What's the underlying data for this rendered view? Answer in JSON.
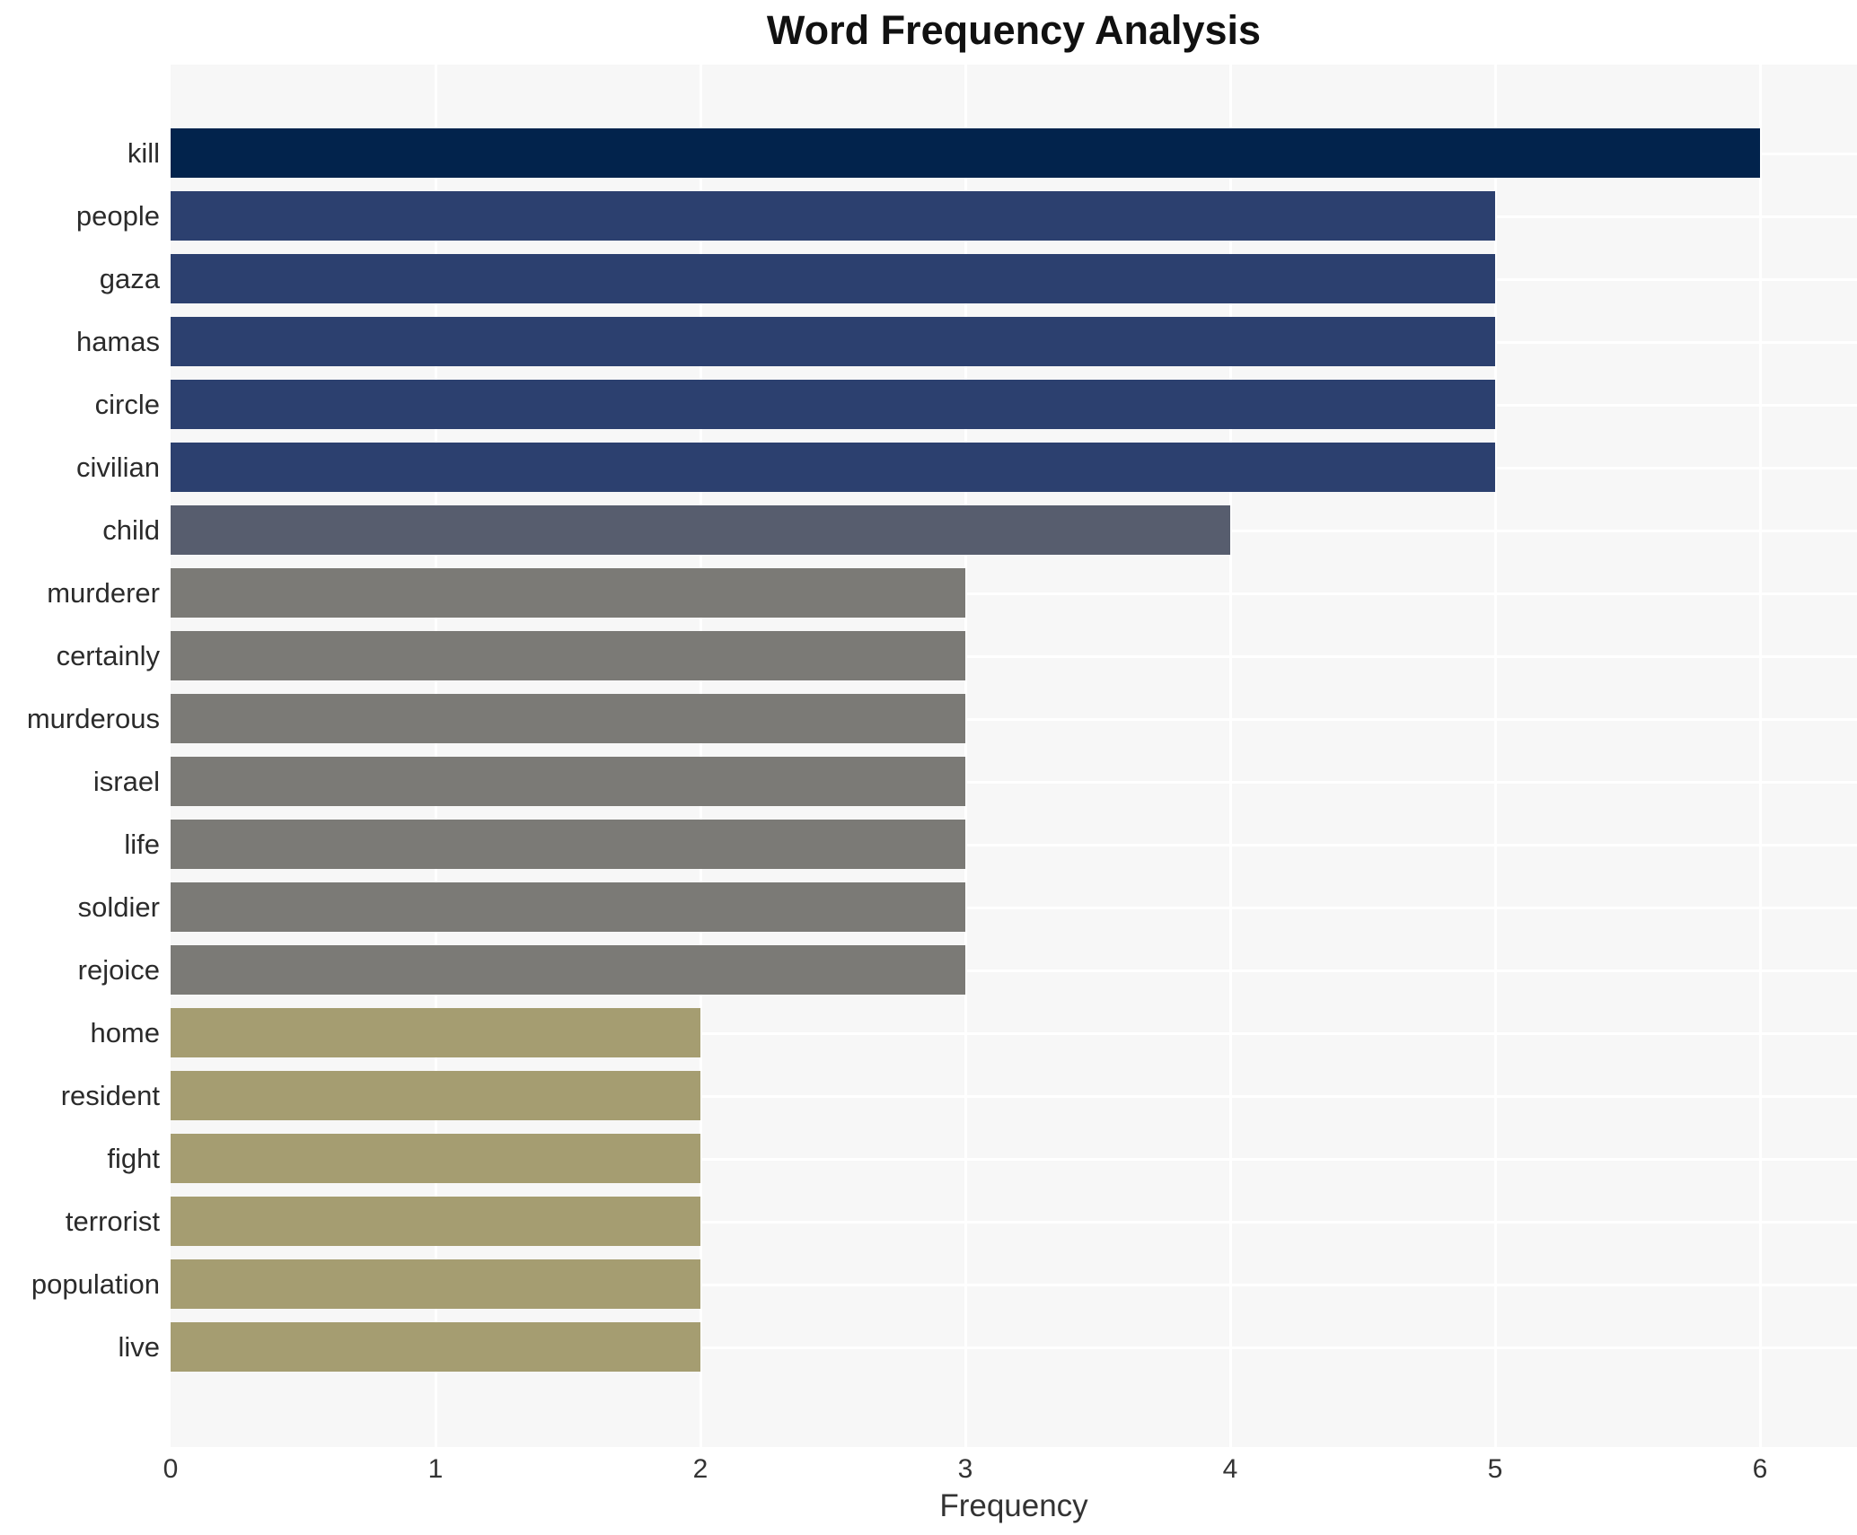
{
  "chart": {
    "title": "Word Frequency Analysis",
    "xlabel": "Frequency"
  },
  "chart_data": {
    "type": "bar",
    "orientation": "horizontal",
    "title": "Word Frequency Analysis",
    "xlabel": "Frequency",
    "ylabel": "",
    "categories": [
      "kill",
      "people",
      "gaza",
      "hamas",
      "circle",
      "civilian",
      "child",
      "murderer",
      "certainly",
      "murderous",
      "israel",
      "life",
      "soldier",
      "rejoice",
      "home",
      "resident",
      "fight",
      "terrorist",
      "population",
      "live"
    ],
    "values": [
      6,
      5,
      5,
      5,
      5,
      5,
      4,
      3,
      3,
      3,
      3,
      3,
      3,
      3,
      2,
      2,
      2,
      2,
      2,
      2
    ],
    "xticks": [
      0,
      1,
      2,
      3,
      4,
      5,
      6
    ],
    "xlim": [
      0,
      6.37
    ],
    "grid": true,
    "legend": false,
    "colors_by_value": {
      "6": "#02234c",
      "5": "#2c406f",
      "4": "#575d6e",
      "3": "#7b7a76",
      "2": "#a59d71"
    },
    "plot_background": "#f7f7f7",
    "gridline_color": "#ffffff"
  }
}
